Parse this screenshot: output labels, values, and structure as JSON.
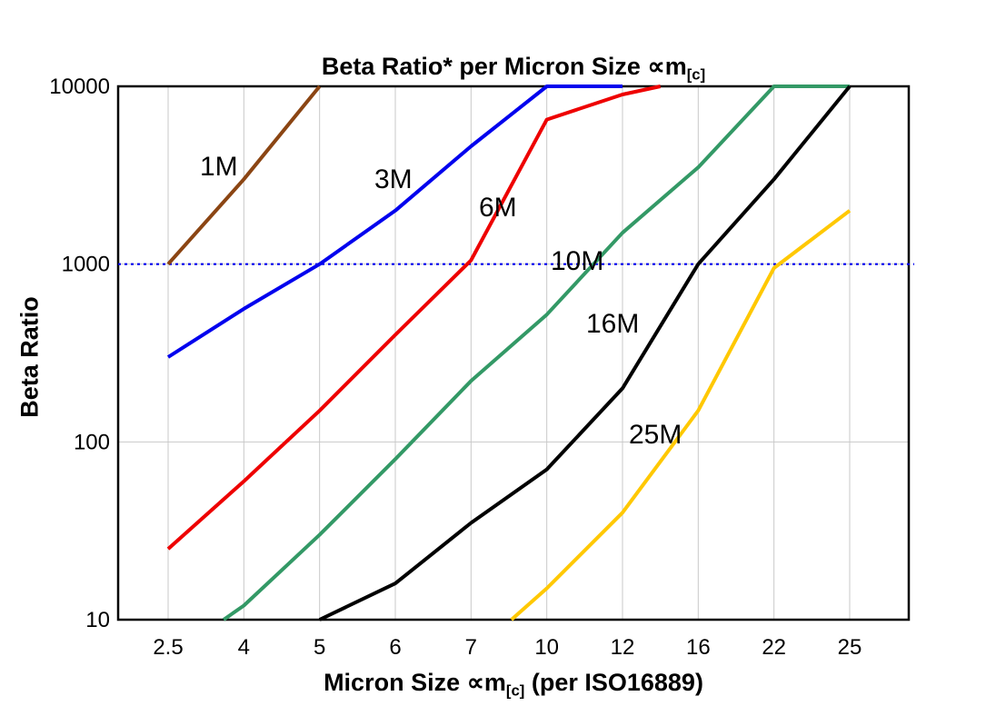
{
  "title": {
    "pre": "Beta Ratio* per Micron Size ∝m",
    "sub": "[c]",
    "post": ""
  },
  "y_axis": {
    "label": "Beta Ratio"
  },
  "x_axis": {
    "pre": "Micron Size ∝m",
    "sub": "[c]",
    "post": " (per ISO16889)"
  },
  "chart_data": {
    "type": "line",
    "title": "Beta Ratio* per Micron Size ∝m[c]",
    "xlabel": "Micron Size ∝m[c] (per ISO16889)",
    "ylabel": "Beta Ratio",
    "x_categories": [
      2.5,
      4,
      5,
      6,
      7,
      10,
      12,
      16,
      22,
      25
    ],
    "y_scale": "log",
    "ylim": [
      10,
      10000
    ],
    "y_ticks": [
      10000,
      1000,
      100,
      10
    ],
    "grid": {
      "vertical": true,
      "horizontal_at": [
        100,
        1000
      ],
      "color": "#c9c9c9"
    },
    "frame_color": "#000000",
    "reference_line": {
      "y": 1000,
      "color": "#0000ee",
      "style": "dotted"
    },
    "series": [
      {
        "name": "1M",
        "color": "#8B4513",
        "points": [
          [
            2.5,
            1000
          ],
          [
            4,
            3000
          ],
          [
            5,
            10000
          ]
        ],
        "label_pos": [
          220,
          193
        ]
      },
      {
        "name": "3M",
        "color": "#0000ee",
        "points": [
          [
            2.5,
            300
          ],
          [
            4,
            560
          ],
          [
            5,
            1000
          ],
          [
            6,
            2000
          ],
          [
            7,
            4600
          ],
          [
            10,
            10000
          ],
          [
            12,
            10000
          ]
        ],
        "label_pos": [
          412,
          207
        ]
      },
      {
        "name": "6M",
        "color": "#ee0000",
        "points": [
          [
            2.5,
            25
          ],
          [
            4,
            60
          ],
          [
            5,
            150
          ],
          [
            6,
            400
          ],
          [
            7,
            1050
          ],
          [
            10,
            6500
          ],
          [
            12,
            9000
          ],
          [
            14,
            10000
          ]
        ],
        "label_pos": [
          527,
          238
        ]
      },
      {
        "name": "10M",
        "color": "#339966",
        "points": [
          [
            3.6,
            10
          ],
          [
            4,
            12
          ],
          [
            5,
            30
          ],
          [
            6,
            80
          ],
          [
            7,
            220
          ],
          [
            10,
            520
          ],
          [
            12,
            1500
          ],
          [
            16,
            3500
          ],
          [
            22,
            10000
          ],
          [
            25,
            10000
          ]
        ],
        "label_pos": [
          606,
          297
        ]
      },
      {
        "name": "16M",
        "color": "#000000",
        "points": [
          [
            5,
            10
          ],
          [
            6,
            16
          ],
          [
            7,
            35
          ],
          [
            10,
            70
          ],
          [
            12,
            200
          ],
          [
            16,
            1000
          ],
          [
            22,
            3000
          ],
          [
            25,
            10000
          ]
        ],
        "label_pos": [
          645,
          366
        ]
      },
      {
        "name": "25M",
        "color": "#FFC800",
        "points": [
          [
            8.6,
            10
          ],
          [
            10,
            15
          ],
          [
            12,
            40
          ],
          [
            16,
            150
          ],
          [
            22,
            950
          ],
          [
            25,
            2000
          ]
        ],
        "label_pos": [
          692,
          488
        ]
      }
    ],
    "legend_position": "inline-labels"
  }
}
